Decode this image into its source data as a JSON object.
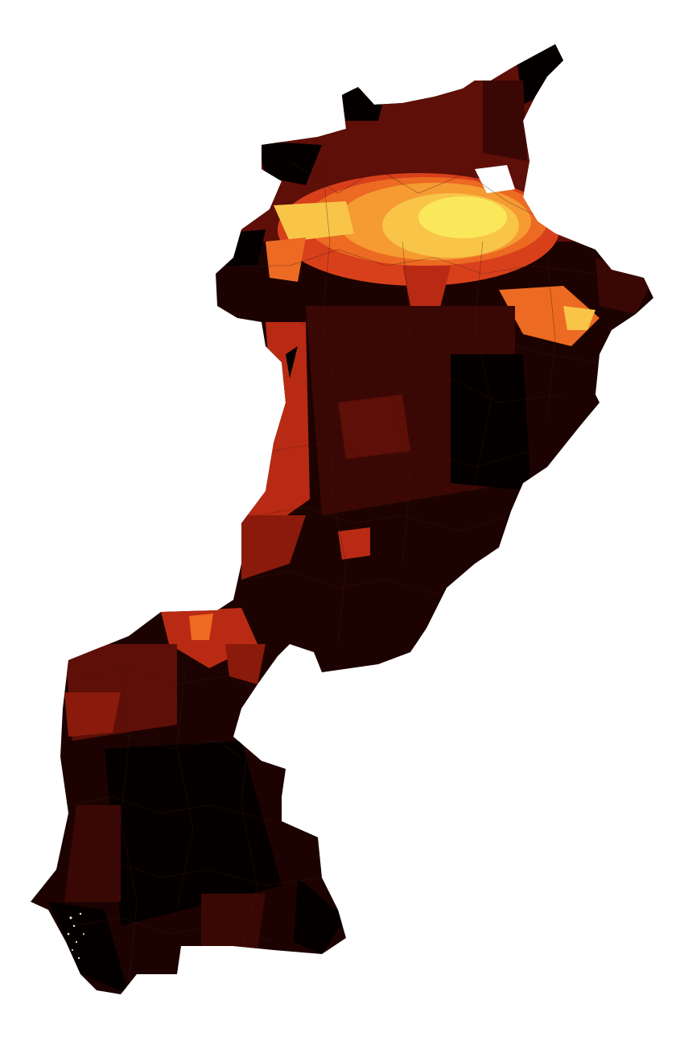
{
  "map": {
    "type": "choropleth",
    "color_scale": [
      "#050000",
      "#1c0302",
      "#3a0804",
      "#5e0f07",
      "#8a1a0c",
      "#b92a14",
      "#d8401c",
      "#ec6a22",
      "#f59b32",
      "#f8c548",
      "#fbe75a"
    ],
    "background_color": "#ffffff",
    "border_color": "#3a1a12",
    "legend": "none",
    "title": ""
  }
}
